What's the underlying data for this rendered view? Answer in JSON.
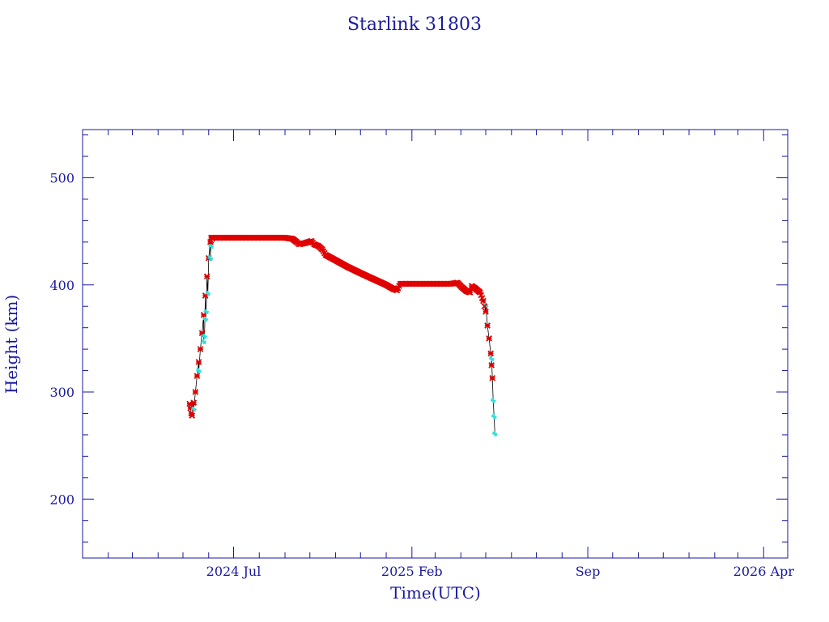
{
  "chart_data": {
    "type": "scatter",
    "title": "Starlink 31803",
    "xlabel": "Time(UTC)",
    "ylabel": "Height (km)",
    "ylim": [
      145,
      545
    ],
    "xlim": [
      "2024-01-01",
      "2026-04-30"
    ],
    "x_ticks": [
      {
        "date": "2024-07-01",
        "label": "2024 Jul"
      },
      {
        "date": "2025-02-01",
        "label": "2025 Feb"
      },
      {
        "date": "2025-09-01",
        "label": "Sep"
      },
      {
        "date": "2026-04-01",
        "label": "2026 Apr"
      }
    ],
    "y_ticks": [
      200,
      300,
      400,
      500
    ],
    "grid": false,
    "colors": {
      "axis": "#1a1aa0",
      "series_main": "#e00000",
      "series_alt": "#33dddd",
      "line": "#000000"
    },
    "series": [
      {
        "color": "#e00000",
        "marker": "x",
        "points": [
          [
            "2024-05-09",
            289
          ],
          [
            "2024-05-10",
            285
          ],
          [
            "2024-05-11",
            280
          ],
          [
            "2024-05-12",
            278
          ],
          [
            "2024-05-14",
            290
          ],
          [
            "2024-05-16",
            300
          ],
          [
            "2024-05-18",
            315
          ],
          [
            "2024-05-20",
            328
          ],
          [
            "2024-05-22",
            340
          ],
          [
            "2024-05-24",
            355
          ],
          [
            "2024-05-26",
            372
          ],
          [
            "2024-05-28",
            390
          ],
          [
            "2024-05-30",
            408
          ],
          [
            "2024-06-01",
            425
          ],
          [
            "2024-06-03",
            440
          ],
          [
            "2024-06-04",
            444
          ],
          [
            "2024-06-10",
            444
          ],
          [
            "2024-06-20",
            444
          ],
          [
            "2024-07-01",
            444
          ],
          [
            "2024-07-15",
            444
          ],
          [
            "2024-08-01",
            444
          ],
          [
            "2024-08-15",
            444
          ],
          [
            "2024-09-01",
            444
          ],
          [
            "2024-09-10",
            443
          ],
          [
            "2024-09-15",
            440
          ],
          [
            "2024-09-18",
            438
          ],
          [
            "2024-09-25",
            439
          ],
          [
            "2024-10-03",
            441
          ],
          [
            "2024-10-06",
            438
          ],
          [
            "2024-10-12",
            436
          ],
          [
            "2024-10-16",
            433
          ],
          [
            "2024-10-20",
            428
          ],
          [
            "2024-11-01",
            423
          ],
          [
            "2024-11-15",
            417
          ],
          [
            "2024-12-01",
            411
          ],
          [
            "2024-12-15",
            406
          ],
          [
            "2025-01-01",
            400
          ],
          [
            "2025-01-10",
            396
          ],
          [
            "2025-01-14",
            395
          ],
          [
            "2025-01-18",
            401
          ],
          [
            "2025-02-01",
            401
          ],
          [
            "2025-02-15",
            401
          ],
          [
            "2025-03-01",
            401
          ],
          [
            "2025-03-20",
            401
          ],
          [
            "2025-03-28",
            402
          ],
          [
            "2025-04-02",
            398
          ],
          [
            "2025-04-08",
            394
          ],
          [
            "2025-04-12",
            393
          ],
          [
            "2025-04-14",
            399
          ],
          [
            "2025-04-18",
            397
          ],
          [
            "2025-04-24",
            393
          ],
          [
            "2025-04-28",
            385
          ],
          [
            "2025-05-01",
            375
          ],
          [
            "2025-05-03",
            362
          ],
          [
            "2025-05-05",
            350
          ],
          [
            "2025-05-07",
            336
          ],
          [
            "2025-05-08",
            325
          ],
          [
            "2025-05-09",
            313
          ]
        ]
      },
      {
        "color": "#33dddd",
        "marker": "+",
        "points": [
          [
            "2024-05-14",
            284
          ],
          [
            "2024-05-20",
            320
          ],
          [
            "2024-05-26",
            347
          ],
          [
            "2024-05-27",
            352
          ],
          [
            "2024-05-28",
            368
          ],
          [
            "2024-05-29",
            375
          ],
          [
            "2024-05-31",
            392
          ],
          [
            "2024-06-03",
            425
          ],
          [
            "2024-06-04",
            436
          ],
          [
            "2025-05-01",
            381
          ],
          [
            "2025-05-08",
            331
          ],
          [
            "2025-05-10",
            292
          ],
          [
            "2025-05-11",
            277
          ],
          [
            "2025-05-12",
            261
          ]
        ]
      }
    ]
  }
}
